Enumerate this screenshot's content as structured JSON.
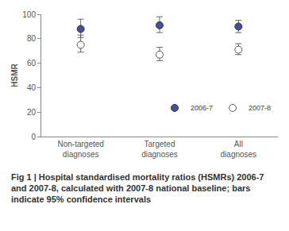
{
  "chart_data": {
    "type": "scatter",
    "title": "Fig 1 | Hospital standardised mortality ratios (HSMRs) 2006-7 and 2007-8, calculated with 2007-8 national baseline; bars indicate 95% confidence intervals",
    "y_label": "HSMR",
    "categories": [
      "Non-targeted diagnoses",
      "Targeted diagnoses",
      "All diagnoses"
    ],
    "series": [
      {
        "name": "2006-7",
        "color": "#4b4f8f",
        "marker": "filled",
        "values": [
          88,
          91,
          90
        ],
        "ci_low": [
          81,
          85,
          85
        ],
        "ci_high": [
          96,
          98,
          95
        ]
      },
      {
        "name": "2007-8",
        "color": "#555555",
        "marker": "open",
        "values": [
          75,
          67,
          71
        ],
        "ci_low": [
          69,
          62,
          67
        ],
        "ci_high": [
          83,
          73,
          76
        ]
      }
    ],
    "ylim": [
      0,
      100
    ],
    "yticks": [
      0,
      20,
      40,
      60,
      80,
      100
    ],
    "grid": false,
    "legend": "lower right"
  }
}
